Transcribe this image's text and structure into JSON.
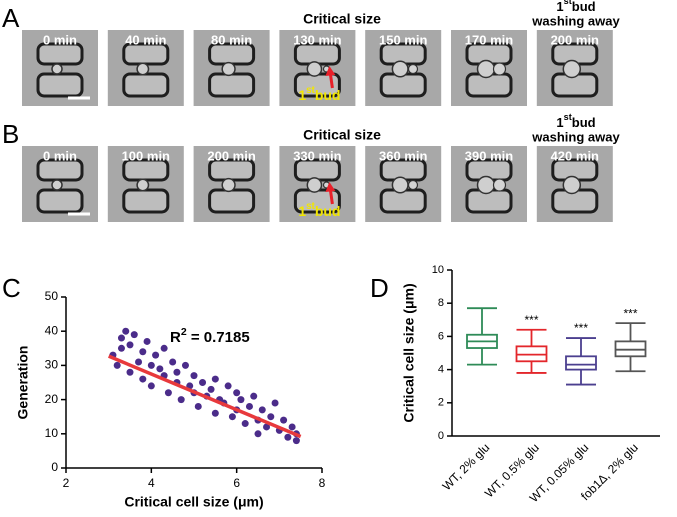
{
  "figure": {
    "panels": [
      {
        "label": "A",
        "times": [
          "0 min",
          "40 min",
          "80 min",
          "130 min",
          "150 min",
          "170 min",
          "200 min"
        ],
        "critical_size": "Critical size",
        "bud_annotation": {
          "base": "1",
          "sup": "st",
          "text": "bud"
        },
        "washing": {
          "base": "1",
          "sup": "st",
          "text": "bud",
          "line2": "washing away"
        }
      },
      {
        "label": "B",
        "times": [
          "0 min",
          "100 min",
          "200 min",
          "330 min",
          "360 min",
          "390 min",
          "420 min"
        ],
        "critical_size": "Critical size",
        "bud_annotation": {
          "base": "1",
          "sup": "st",
          "text": "bud"
        },
        "washing": {
          "base": "1",
          "sup": "st",
          "text": "bud",
          "line2": "washing away"
        }
      }
    ]
  },
  "chart_data": [
    {
      "type": "scatter",
      "panel_label": "C",
      "xlabel": "Critical cell size (μm)",
      "ylabel": "Generation",
      "annotation": {
        "base": "R",
        "sup": "2",
        "text": " = 0.7185"
      },
      "color": "#4b2c8a",
      "fit_color": "#e8393c",
      "xlim": [
        2,
        8
      ],
      "xticks": [
        2,
        4,
        6,
        8
      ],
      "ylim": [
        0,
        50
      ],
      "yticks": [
        0,
        10,
        20,
        30,
        40,
        50
      ],
      "x": [
        3.1,
        3.2,
        3.3,
        3.3,
        3.4,
        3.5,
        3.5,
        3.6,
        3.7,
        3.8,
        3.8,
        3.9,
        4.0,
        4.0,
        4.1,
        4.2,
        4.3,
        4.3,
        4.4,
        4.5,
        4.6,
        4.6,
        4.7,
        4.8,
        4.9,
        5.0,
        5.0,
        5.1,
        5.2,
        5.3,
        5.4,
        5.5,
        5.5,
        5.6,
        5.7,
        5.8,
        5.9,
        6.0,
        6.0,
        6.1,
        6.2,
        6.3,
        6.4,
        6.5,
        6.5,
        6.6,
        6.7,
        6.8,
        6.9,
        7.0,
        7.1,
        7.2,
        7.3,
        7.4,
        7.4
      ],
      "values": [
        33,
        30,
        38,
        35,
        40,
        28,
        36,
        39,
        31,
        26,
        34,
        37,
        30,
        24,
        33,
        29,
        27,
        35,
        22,
        31,
        25,
        28,
        20,
        30,
        24,
        22,
        27,
        18,
        25,
        21,
        23,
        16,
        26,
        20,
        19,
        24,
        15,
        22,
        17,
        20,
        13,
        18,
        21,
        14,
        10,
        17,
        12,
        15,
        19,
        11,
        14,
        9,
        12,
        8,
        10
      ],
      "fit": {
        "x": [
          3.0,
          7.5
        ],
        "values": [
          32.7,
          9.2
        ]
      }
    },
    {
      "type": "box",
      "panel_label": "D",
      "ylabel": "Critical cell size (μm)",
      "ylim": [
        0,
        10
      ],
      "yticks": [
        0,
        2,
        4,
        6,
        8,
        10
      ],
      "categories": [
        "WT, 2% glu",
        "WT, 0.5% glu",
        "WT, 0.05% glu",
        "fob1Δ, 2% glu"
      ],
      "colors": [
        "#2e8b57",
        "#e3262b",
        "#4b3f8f",
        "#555555"
      ],
      "significance": [
        null,
        "***",
        "***",
        "***"
      ],
      "boxes": [
        {
          "min": 4.3,
          "q1": 5.3,
          "median": 5.7,
          "q3": 6.1,
          "max": 7.7
        },
        {
          "min": 3.8,
          "q1": 4.5,
          "median": 4.9,
          "q3": 5.4,
          "max": 6.4
        },
        {
          "min": 3.1,
          "q1": 4.0,
          "median": 4.3,
          "q3": 4.8,
          "max": 5.9
        },
        {
          "min": 3.9,
          "q1": 4.8,
          "median": 5.2,
          "q3": 5.7,
          "max": 6.8
        }
      ]
    }
  ]
}
